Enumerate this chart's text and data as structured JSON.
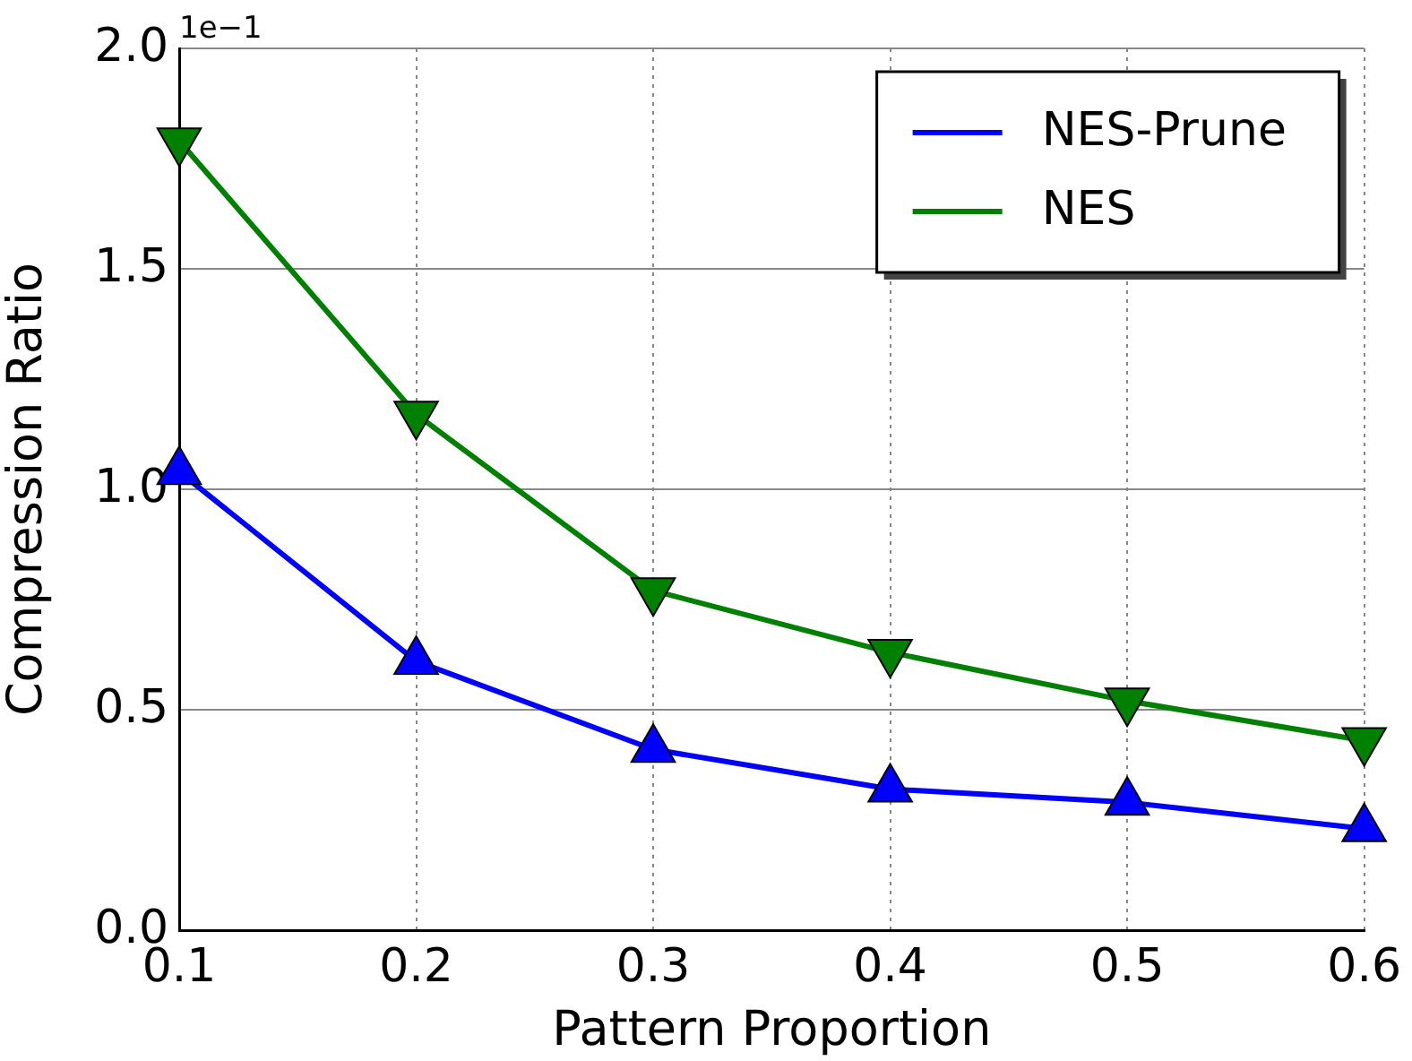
{
  "chart_data": {
    "type": "line",
    "xlabel": "Pattern Proportion",
    "ylabel": "Compression Ratio",
    "x": [
      0.1,
      0.2,
      0.3,
      0.4,
      0.5,
      0.6
    ],
    "xlim": [
      0.1,
      0.6
    ],
    "xticks": [
      0.1,
      0.2,
      0.3,
      0.4,
      0.5,
      0.6
    ],
    "ylim": [
      0,
      2
    ],
    "yticks": [
      {
        "value": 0,
        "label": "0.0"
      },
      0.5,
      {
        "value": 1,
        "label": "1.0"
      },
      1.5,
      {
        "value": 2,
        "label": "2.0"
      }
    ],
    "grid": true,
    "legend": "top right",
    "line_style": "solid",
    "annotations": [
      "1e−1"
    ],
    "series": [
      {
        "name": "NES-Prune",
        "color": "#0000ff",
        "marker": "triangle",
        "values": [
          1.04,
          0.61,
          0.41,
          0.32,
          0.29,
          0.23
        ]
      },
      {
        "name": "NES",
        "color": "#008000",
        "marker": "triangle-down",
        "values": [
          1.79,
          1.17,
          0.77,
          0.63,
          0.52,
          0.43
        ]
      }
    ]
  }
}
